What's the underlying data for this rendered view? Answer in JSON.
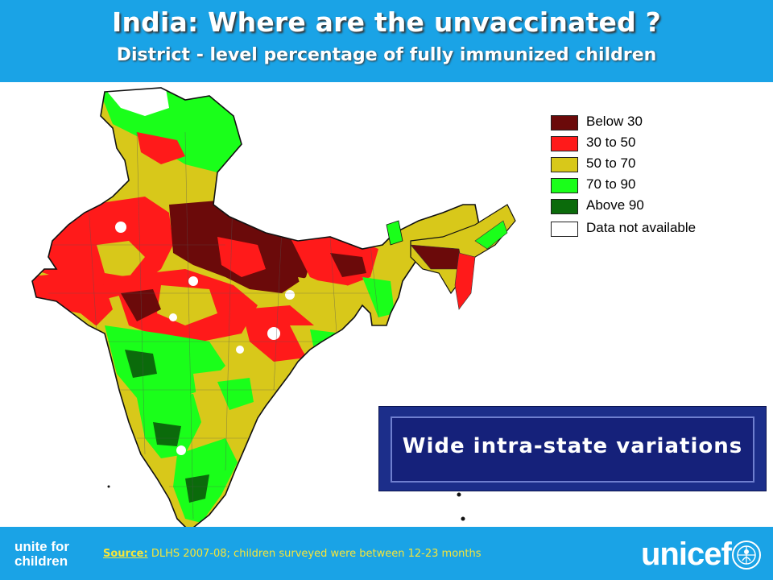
{
  "header": {
    "title": "India: Where are the unvaccinated ?",
    "subtitle": "District - level percentage of fully immunized children"
  },
  "legend": {
    "items": [
      {
        "label": "Below 30",
        "color": "#6b0a0a"
      },
      {
        "label": "30 to 50",
        "color": "#ff1a1a"
      },
      {
        "label": "50 to 70",
        "color": "#d8c81a"
      },
      {
        "label": "70 to 90",
        "color": "#1aff1a"
      },
      {
        "label": "Above 90",
        "color": "#0b6b0b"
      },
      {
        "label": "Data not available",
        "color": "#ffffff"
      }
    ]
  },
  "callout": {
    "text": "Wide intra-state variations"
  },
  "footer": {
    "tagline": "unite for children",
    "source_label": "Source:",
    "source_text": " DLHS 2007-08; children surveyed were between 12-23 months",
    "brand": "unicef",
    "emblem_icon": "unicef-emblem-icon"
  },
  "colors": {
    "header_bg": "#1aa3e6",
    "callout_bg": "#15217a",
    "source_text": "#f5e53a"
  }
}
